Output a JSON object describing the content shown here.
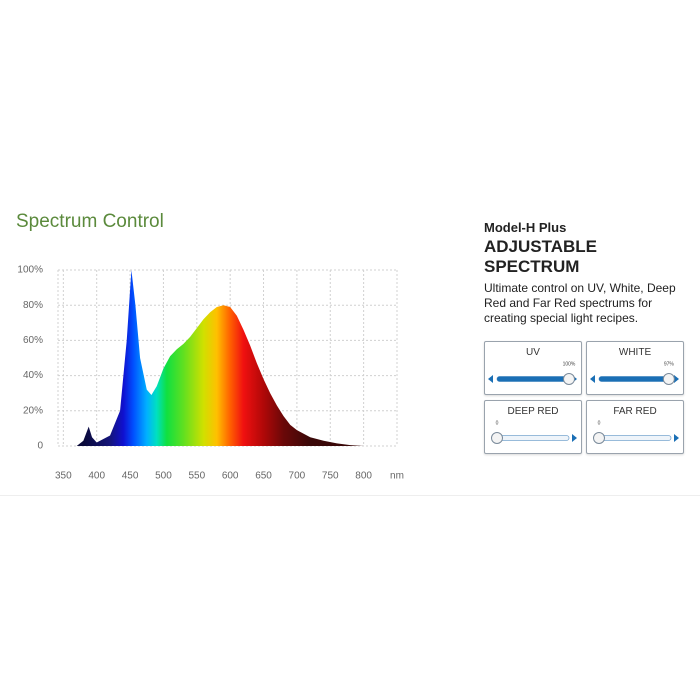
{
  "chart_data": {
    "type": "area",
    "title": "Spectrum Control",
    "x": [
      370,
      380,
      388,
      393,
      400,
      420,
      435,
      445,
      452,
      458,
      465,
      475,
      482,
      490,
      500,
      510,
      520,
      530,
      540,
      550,
      560,
      570,
      580,
      590,
      600,
      610,
      620,
      630,
      640,
      650,
      660,
      670,
      680,
      690,
      700,
      720,
      740,
      760,
      780,
      800
    ],
    "values": [
      0,
      3,
      11,
      5,
      2,
      6,
      20,
      60,
      100,
      80,
      50,
      32,
      29,
      34,
      44,
      51,
      55,
      58,
      62,
      67,
      72,
      76,
      79,
      80,
      79,
      74,
      66,
      57,
      47,
      38,
      30,
      23,
      17,
      12,
      9,
      5,
      3,
      1.5,
      0.5,
      0
    ],
    "xlim": [
      342,
      850
    ],
    "xticks": [
      350,
      400,
      450,
      500,
      550,
      600,
      650,
      700,
      750,
      800
    ],
    "x_unit": "nm",
    "ylim": [
      0,
      100
    ],
    "yticks": [
      0,
      {
        "value": 20,
        "label": "20%"
      },
      {
        "value": 40,
        "label": "40%"
      },
      {
        "value": 60,
        "label": "60%"
      },
      {
        "value": 80,
        "label": "80%"
      },
      {
        "value": 100,
        "label": "100%"
      }
    ],
    "grid": true
  },
  "panel": {
    "model": "Model-H  Plus",
    "heading": "ADJUSTABLE SPECTRUM",
    "description": "Ultimate control on UV, White, Deep Red and Far Red spectrums for creating special light recipes.",
    "sliders": [
      {
        "label": "UV",
        "value": 100,
        "value_label": "100%"
      },
      {
        "label": "WHITE",
        "value": 97,
        "value_label": "97%"
      },
      {
        "label": "DEEP RED",
        "value": 0,
        "value_label": "0"
      },
      {
        "label": "FAR RED",
        "value": 0,
        "value_label": "0"
      }
    ]
  }
}
